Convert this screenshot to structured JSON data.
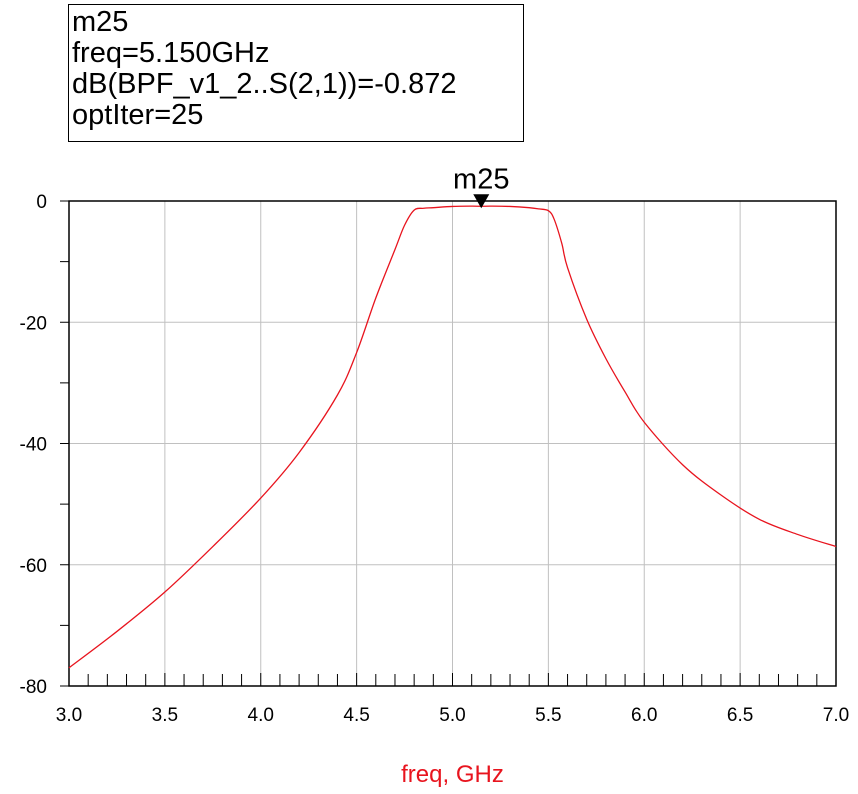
{
  "marker_readout": {
    "name": "m25",
    "freq_line": "freq=5.150GHz",
    "value_line": "dB(BPF_v1_2..S(2,1))=-0.872",
    "iter_line": "optIter=25"
  },
  "colors": {
    "trace": "#e8141e",
    "axis_title": "#e8141e",
    "grid": "#c0c0c0",
    "axis": "#000000"
  },
  "chart_data": {
    "type": "line",
    "xlabel": "freq, GHz",
    "ylabel": "",
    "xlim": [
      3.0,
      7.0
    ],
    "ylim": [
      -80,
      0
    ],
    "x_ticks": [
      "3.0",
      "3.5",
      "4.0",
      "4.5",
      "5.0",
      "5.5",
      "6.0",
      "6.5",
      "7.0"
    ],
    "y_ticks": [
      "0",
      "-20",
      "-40",
      "-60",
      "-80"
    ],
    "grid": true,
    "marker": {
      "label": "m25",
      "x": 5.15,
      "y": -0.872
    },
    "series": [
      {
        "x": [
          3.0,
          3.25,
          3.5,
          3.75,
          4.0,
          4.2,
          4.4,
          4.5,
          4.6,
          4.7,
          4.75,
          4.8,
          4.85,
          4.9,
          5.0,
          5.1,
          5.15,
          5.2,
          5.3,
          5.4,
          5.45,
          5.5,
          5.53,
          5.57,
          5.6,
          5.7,
          5.8,
          5.9,
          6.0,
          6.2,
          6.4,
          6.6,
          6.8,
          7.0
        ],
        "y": [
          -77,
          -71,
          -64.5,
          -57,
          -49,
          -41.5,
          -32,
          -25,
          -16,
          -8,
          -4,
          -1.5,
          -1.2,
          -1.1,
          -0.9,
          -0.85,
          -0.872,
          -0.85,
          -0.9,
          -1.1,
          -1.3,
          -1.6,
          -3,
          -7,
          -11,
          -19.5,
          -26,
          -31.5,
          -36.5,
          -43.5,
          -48.5,
          -52.5,
          -55,
          -57
        ]
      }
    ]
  }
}
